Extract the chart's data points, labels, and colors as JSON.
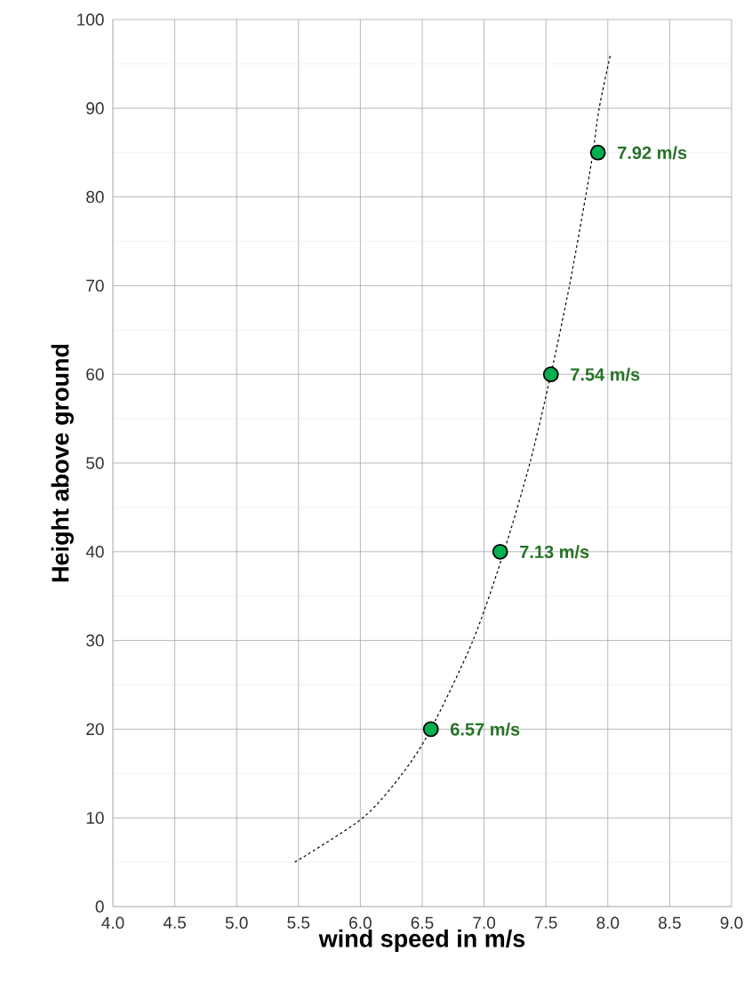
{
  "chart_data": {
    "type": "line",
    "xlabel": "wind speed in m/s",
    "ylabel": "Height above ground",
    "xlim": [
      4.0,
      9.0
    ],
    "ylim": [
      0,
      100
    ],
    "xticks": [
      {
        "value": 4.0,
        "label": "4.0"
      },
      {
        "value": 4.5,
        "label": "4.5"
      },
      {
        "value": 5.0,
        "label": "5.0"
      },
      {
        "value": 5.5,
        "label": "5.5"
      },
      {
        "value": 6.0,
        "label": "6.0"
      },
      {
        "value": 6.5,
        "label": "6.5"
      },
      {
        "value": 7.0,
        "label": "7.0"
      },
      {
        "value": 7.5,
        "label": "7.5"
      },
      {
        "value": 8.0,
        "label": "8.0"
      },
      {
        "value": 8.5,
        "label": "8.5"
      },
      {
        "value": 9.0,
        "label": "9.0"
      }
    ],
    "yticks": [
      0,
      10,
      20,
      30,
      40,
      50,
      60,
      70,
      80,
      90,
      100
    ],
    "grid": true,
    "series": [
      {
        "color": "#000000",
        "line_style": "dashed",
        "marker": "none",
        "x": [
          5.47,
          6.02,
          6.34,
          6.57,
          6.91,
          7.16,
          7.37,
          7.54,
          7.69,
          7.82,
          7.88,
          7.93,
          8.02
        ],
        "values": [
          5,
          10,
          15,
          20,
          30,
          40,
          50,
          60,
          70,
          80,
          85,
          90,
          96
        ]
      },
      {
        "type": "scatter",
        "color": "#00b050",
        "marker": "circle",
        "x": [
          6.57,
          7.13,
          7.54,
          7.92
        ],
        "values": [
          20,
          40,
          60,
          85
        ]
      }
    ],
    "annotations": [
      {
        "text": "6.57 m/s",
        "x": 6.57,
        "y": 20
      },
      {
        "text": "7.13 m/s",
        "x": 7.13,
        "y": 40
      },
      {
        "text": "7.54 m/s",
        "x": 7.54,
        "y": 60
      },
      {
        "text": "7.92 m/s",
        "x": 7.92,
        "y": 85
      }
    ]
  }
}
